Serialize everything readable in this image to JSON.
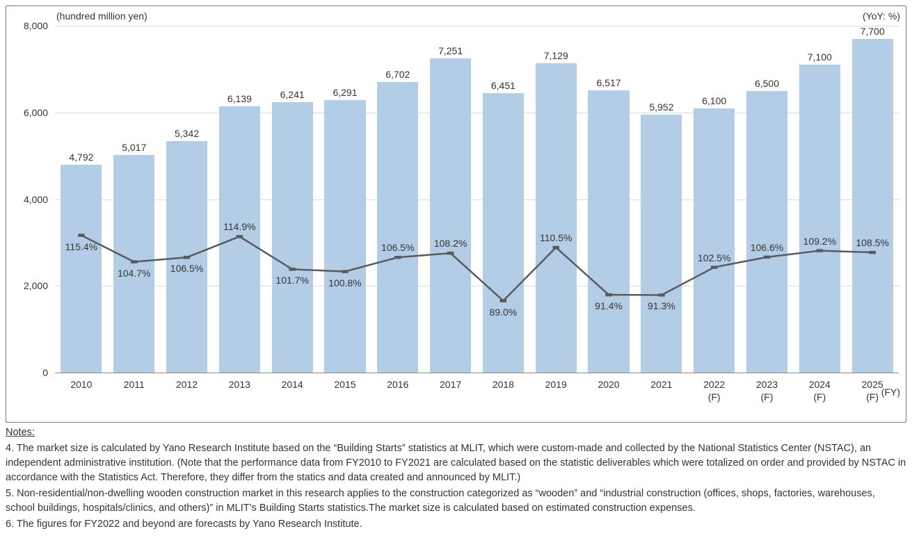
{
  "chart": {
    "type": "bar+line",
    "y_axis_title": "(hundred million yen)",
    "right_axis_title": "(YoY: %)",
    "x_axis_title": "(FY)",
    "background_color": "#ffffff",
    "grid_color": "#d9d9d9",
    "border_color": "#7a7a7a",
    "text_color": "#333333",
    "bar_color": "#b4cde6",
    "line_color": "#5a5a5a",
    "marker_color": "#5a5a5a",
    "font_size_axis": 14,
    "font_size_labels": 14,
    "y_min": 0,
    "y_max": 8000,
    "y_tick_step": 2000,
    "y_ticks": [
      0,
      2000,
      4000,
      6000,
      8000
    ],
    "bar_width_ratio": 0.78,
    "line_width": 2.5,
    "marker_size": 5,
    "categories": [
      "2010",
      "2011",
      "2012",
      "2013",
      "2014",
      "2015",
      "2016",
      "2017",
      "2018",
      "2019",
      "2020",
      "2021",
      "2022\n(F)",
      "2023\n(F)",
      "2024\n(F)",
      "2025\n(F)"
    ],
    "bar_values": [
      4792,
      5017,
      5342,
      6139,
      6241,
      6291,
      6702,
      7251,
      6451,
      7129,
      6517,
      5952,
      6100,
      6500,
      7100,
      7700
    ],
    "bar_labels": [
      "4,792",
      "5,017",
      "5,342",
      "6,139",
      "6,241",
      "6,291",
      "6,702",
      "7,251",
      "6,451",
      "7,129",
      "6,517",
      "5,952",
      "6,100",
      "6,500",
      "7,100",
      "7,700"
    ],
    "line_values": [
      115.4,
      104.7,
      106.5,
      114.9,
      101.7,
      100.8,
      106.5,
      108.2,
      89.0,
      110.5,
      91.4,
      91.3,
      102.5,
      106.6,
      109.2,
      108.5
    ],
    "line_labels": [
      "115.4%",
      "104.7%",
      "106.5%",
      "114.9%",
      "101.7%",
      "100.8%",
      "106.5%",
      "108.2%",
      "89.0%",
      "110.5%",
      "91.4%",
      "91.3%",
      "102.5%",
      "106.6%",
      "109.2%",
      "108.5%"
    ],
    "pct_label_pos": [
      "below",
      "below",
      "below",
      "above",
      "below",
      "below",
      "above",
      "above",
      "below",
      "above",
      "below",
      "below",
      "above",
      "above",
      "above",
      "above"
    ],
    "line_y_min": 60,
    "line_y_max": 200
  },
  "notes": {
    "title": "Notes:",
    "items": [
      "4. The market size is calculated by Yano Research Institute based on the “Building Starts” statistics at MLIT, which were custom-made and collected by the National Statistics Center (NSTAC), an independent administrative institution. (Note that the performance data from FY2010 to FY2021 are calculated based on the statistic deliverables which were totalized on order and provided by NSTAC in accordance with the Statistics Act. Therefore, they differ from the statics and data created and announced by MLIT.)",
      "5. Non-residential/non-dwelling wooden construction market in this research applies to the construction categorized as “wooden” and “industrial construction (offices, shops, factories, warehouses, school buildings, hospitals/clinics, and others)” in MLIT’s Building Starts statistics.The market size is calculated based on estimated construction expenses.",
      "6.  The figures for FY2022 and beyond are forecasts by Yano Research Institute."
    ]
  }
}
